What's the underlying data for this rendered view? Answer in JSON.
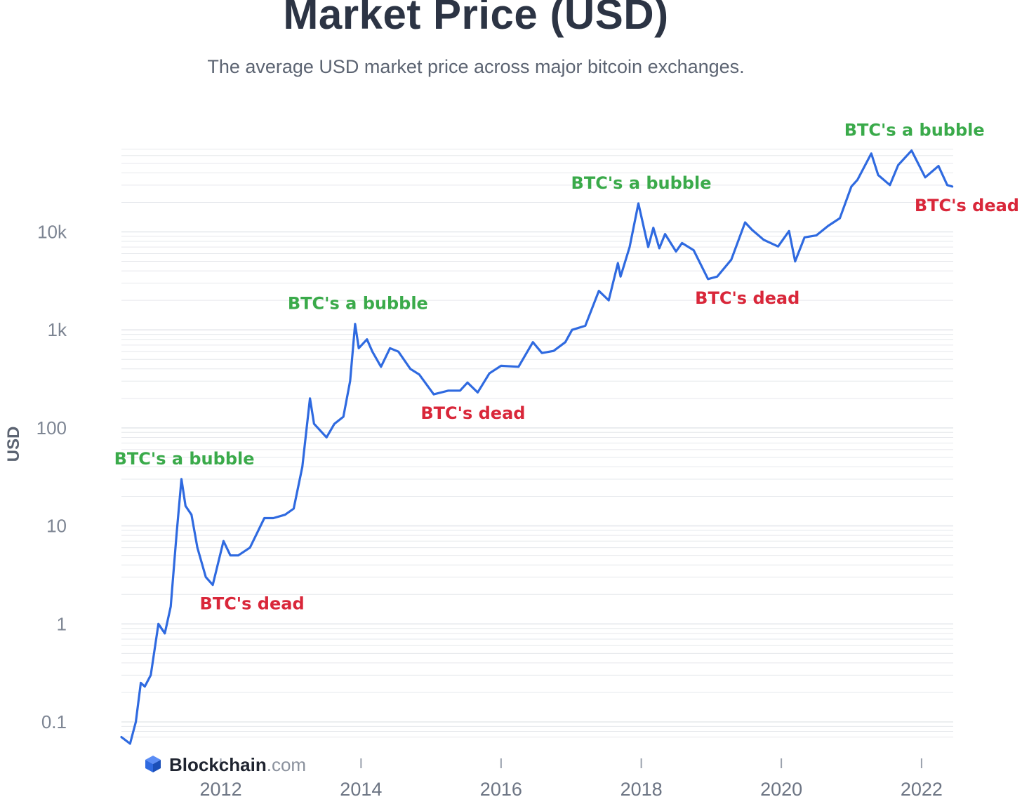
{
  "title": "Market Price (USD)",
  "subtitle": "The average USD market price across major bitcoin exchanges.",
  "brand": {
    "name": "Blockchain",
    "suffix": ".com",
    "icon": "blockchain-cube-icon"
  },
  "colors": {
    "line": "#2f6ae0",
    "bubble": "#3aaa4a",
    "dead": "#d9273a",
    "grid": "#e6e8ec"
  },
  "chart_data": {
    "type": "line",
    "title": "Market Price (USD)",
    "ylabel": "USD",
    "xlabel": "",
    "y_scale": "log",
    "ylim": [
      0.065,
      80000
    ],
    "xlim": [
      "2010-08-01",
      "2022-06-15"
    ],
    "y_ticks": [
      {
        "value": 0.1,
        "label": "0.1"
      },
      {
        "value": 1,
        "label": "1"
      },
      {
        "value": 10,
        "label": "10"
      },
      {
        "value": 100,
        "label": "100"
      },
      {
        "value": 1000,
        "label": "1k"
      },
      {
        "value": 10000,
        "label": "10k"
      }
    ],
    "x_ticks": [
      {
        "value": "2012-01-01",
        "label": "2012"
      },
      {
        "value": "2014-01-01",
        "label": "2014"
      },
      {
        "value": "2016-01-01",
        "label": "2016"
      },
      {
        "value": "2018-01-01",
        "label": "2018"
      },
      {
        "value": "2020-01-01",
        "label": "2020"
      },
      {
        "value": "2022-01-01",
        "label": "2022"
      }
    ],
    "grid": true,
    "legend": "none",
    "series": [
      {
        "points": [
          [
            "2010-08-01",
            0.07
          ],
          [
            "2010-09-15",
            0.06
          ],
          [
            "2010-10-15",
            0.1
          ],
          [
            "2010-11-10",
            0.25
          ],
          [
            "2010-12-01",
            0.23
          ],
          [
            "2011-01-01",
            0.3
          ],
          [
            "2011-02-10",
            1.0
          ],
          [
            "2011-03-15",
            0.8
          ],
          [
            "2011-04-15",
            1.5
          ],
          [
            "2011-05-15",
            8.0
          ],
          [
            "2011-06-10",
            30.0
          ],
          [
            "2011-07-01",
            16.0
          ],
          [
            "2011-08-01",
            13.0
          ],
          [
            "2011-09-01",
            6.0
          ],
          [
            "2011-10-15",
            3.0
          ],
          [
            "2011-11-20",
            2.5
          ],
          [
            "2012-01-15",
            7.0
          ],
          [
            "2012-02-20",
            5.0
          ],
          [
            "2012-04-01",
            5.0
          ],
          [
            "2012-06-01",
            6.0
          ],
          [
            "2012-08-15",
            12.0
          ],
          [
            "2012-10-01",
            12.0
          ],
          [
            "2012-12-01",
            13.0
          ],
          [
            "2013-01-15",
            15.0
          ],
          [
            "2013-03-01",
            40.0
          ],
          [
            "2013-04-10",
            200.0
          ],
          [
            "2013-05-01",
            110.0
          ],
          [
            "2013-07-05",
            80.0
          ],
          [
            "2013-08-15",
            110.0
          ],
          [
            "2013-10-01",
            130.0
          ],
          [
            "2013-11-05",
            300.0
          ],
          [
            "2013-12-01",
            1150.0
          ],
          [
            "2013-12-20",
            650.0
          ],
          [
            "2014-02-01",
            800.0
          ],
          [
            "2014-03-01",
            600.0
          ],
          [
            "2014-04-15",
            420.0
          ],
          [
            "2014-06-01",
            650.0
          ],
          [
            "2014-07-15",
            600.0
          ],
          [
            "2014-09-15",
            400.0
          ],
          [
            "2014-11-01",
            350.0
          ],
          [
            "2015-01-15",
            220.0
          ],
          [
            "2015-04-01",
            240.0
          ],
          [
            "2015-06-01",
            240.0
          ],
          [
            "2015-07-10",
            290.0
          ],
          [
            "2015-09-01",
            230.0
          ],
          [
            "2015-11-01",
            360.0
          ],
          [
            "2016-01-01",
            430.0
          ],
          [
            "2016-04-01",
            420.0
          ],
          [
            "2016-06-15",
            750.0
          ],
          [
            "2016-08-01",
            580.0
          ],
          [
            "2016-10-01",
            610.0
          ],
          [
            "2016-12-01",
            750.0
          ],
          [
            "2017-01-05",
            1000.0
          ],
          [
            "2017-03-15",
            1100.0
          ],
          [
            "2017-05-25",
            2500.0
          ],
          [
            "2017-07-15",
            2000.0
          ],
          [
            "2017-09-01",
            4800.0
          ],
          [
            "2017-09-15",
            3500.0
          ],
          [
            "2017-11-01",
            7000.0
          ],
          [
            "2017-12-17",
            19500.0
          ],
          [
            "2018-02-06",
            7000.0
          ],
          [
            "2018-03-05",
            11000.0
          ],
          [
            "2018-04-05",
            6800.0
          ],
          [
            "2018-05-05",
            9500.0
          ],
          [
            "2018-07-01",
            6300.0
          ],
          [
            "2018-08-01",
            7700.0
          ],
          [
            "2018-10-01",
            6500.0
          ],
          [
            "2018-12-15",
            3300.0
          ],
          [
            "2019-02-01",
            3500.0
          ],
          [
            "2019-04-15",
            5200.0
          ],
          [
            "2019-06-26",
            12500.0
          ],
          [
            "2019-08-01",
            10500.0
          ],
          [
            "2019-10-01",
            8300.0
          ],
          [
            "2019-12-15",
            7100.0
          ],
          [
            "2020-02-10",
            10200.0
          ],
          [
            "2020-03-13",
            5000.0
          ],
          [
            "2020-05-01",
            8800.0
          ],
          [
            "2020-07-01",
            9200.0
          ],
          [
            "2020-09-01",
            11500.0
          ],
          [
            "2020-11-01",
            13800.0
          ],
          [
            "2020-12-31",
            29000.0
          ],
          [
            "2021-02-01",
            34000.0
          ],
          [
            "2021-04-14",
            63000.0
          ],
          [
            "2021-05-20",
            38000.0
          ],
          [
            "2021-07-20",
            30000.0
          ],
          [
            "2021-09-01",
            48000.0
          ],
          [
            "2021-11-10",
            67500.0
          ],
          [
            "2022-01-20",
            36000.0
          ],
          [
            "2022-03-30",
            47000.0
          ],
          [
            "2022-05-15",
            30000.0
          ],
          [
            "2022-06-10",
            29000.0
          ]
        ]
      }
    ],
    "annotations": [
      {
        "text": "BTC's a bubble",
        "kind": "bubble",
        "x": "2011-06-10",
        "y": 30.0
      },
      {
        "text": "BTC's dead",
        "kind": "dead",
        "x": "2011-11-20",
        "y": 2.5
      },
      {
        "text": "BTC's a bubble",
        "kind": "bubble",
        "x": "2013-12-01",
        "y": 1150.0
      },
      {
        "text": "BTC's dead",
        "kind": "dead",
        "x": "2015-01-15",
        "y": 220.0
      },
      {
        "text": "BTC's a bubble",
        "kind": "bubble",
        "x": "2017-12-17",
        "y": 19500.0
      },
      {
        "text": "BTC's dead",
        "kind": "dead",
        "x": "2018-12-15",
        "y": 3300.0
      },
      {
        "text": "BTC's a bubble",
        "kind": "bubble",
        "x": "2021-11-10",
        "y": 67500.0
      },
      {
        "text": "BTC's dead",
        "kind": "dead",
        "x": "2022-06-10",
        "y": 29000.0
      }
    ]
  }
}
